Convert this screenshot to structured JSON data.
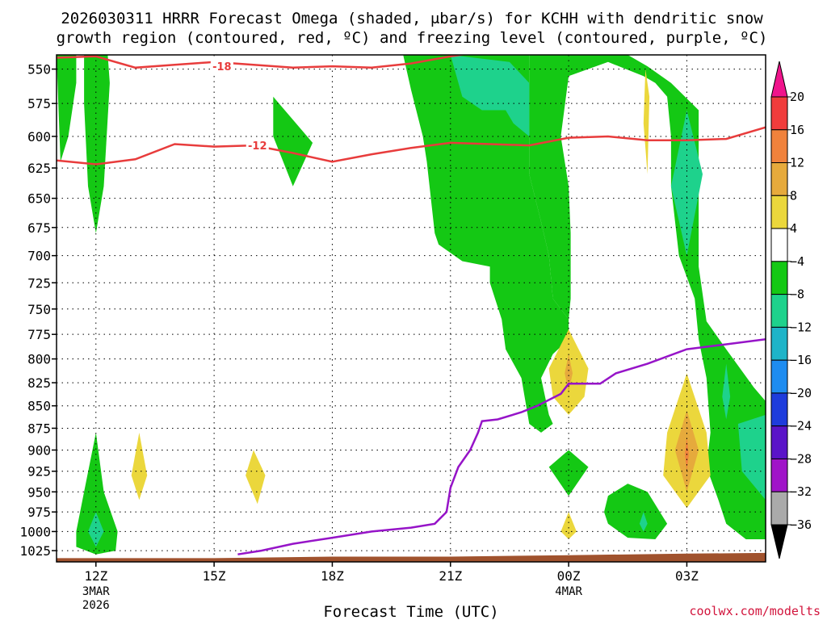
{
  "title_line1": "2026030311 HRRR Forecast Omega (shaded, μbar/s) for KCHH with dendritic snow",
  "title_line2": "growth region (contoured, red, ºC) and freezing level (contoured, purple, ºC)",
  "credit": "coolwx.com/modelts",
  "chart_data": {
    "type": "heatmap",
    "xlabel": "Forecast Time (UTC)",
    "ylabel": "",
    "x_tick_labels": [
      "12Z",
      "15Z",
      "18Z",
      "21Z",
      "00Z",
      "03Z"
    ],
    "x_tick_hours": [
      0,
      3,
      6,
      9,
      12,
      15
    ],
    "x_date_labels": [
      {
        "hour": 0,
        "lines": [
          "3MAR",
          "2026"
        ]
      },
      {
        "hour": 12,
        "lines": [
          "4MAR"
        ]
      }
    ],
    "xlim_hours": [
      -1,
      17
    ],
    "y_ticks_mb": [
      550,
      575,
      600,
      625,
      650,
      675,
      700,
      725,
      750,
      775,
      800,
      825,
      850,
      875,
      900,
      925,
      950,
      975,
      1000,
      1025
    ],
    "ylim_mb": [
      540,
      1040
    ],
    "y_scale": "log-pressure",
    "grid": "dotted",
    "colorbar": {
      "labels": [
        "20",
        "16",
        "12",
        "8",
        "4",
        "−4",
        "−8",
        "−12",
        "−16",
        "−20",
        "−24",
        "−28",
        "−32",
        "−36"
      ],
      "colors": [
        "#f0148c",
        "#f03c3c",
        "#f0823c",
        "#e6aa3c",
        "#ebd73c",
        "#ffffff",
        "#14c814",
        "#1ed28c",
        "#1eb4c8",
        "#1e8cf0",
        "#1e3cdc",
        "#5a14c8",
        "#a014c8",
        "#aaaaaa",
        "#000000"
      ]
    },
    "omega_regions": [
      {
        "level": "-4",
        "color": "#14c814",
        "points": [
          [
            -0.3,
            540
          ],
          [
            0.3,
            540
          ],
          [
            0.35,
            560
          ],
          [
            0.2,
            640
          ],
          [
            0.0,
            680
          ],
          [
            -0.2,
            640
          ],
          [
            -0.3,
            575
          ]
        ]
      },
      {
        "level": "-4",
        "color": "#14c814",
        "points": [
          [
            4.5,
            570
          ],
          [
            5.5,
            605
          ],
          [
            5.0,
            640
          ],
          [
            4.5,
            600
          ]
        ]
      },
      {
        "level": "-4",
        "color": "#14c814",
        "points": [
          [
            11.0,
            540
          ],
          [
            11.8,
            540
          ],
          [
            13.5,
            540
          ],
          [
            14.0,
            548
          ],
          [
            14.6,
            560
          ],
          [
            15.3,
            580
          ],
          [
            15.3,
            655
          ],
          [
            15.3,
            710
          ],
          [
            15.5,
            762
          ],
          [
            16.0,
            790
          ],
          [
            16.7,
            830
          ],
          [
            17.0,
            845
          ],
          [
            17.0,
            1010
          ],
          [
            16.5,
            1010
          ],
          [
            16.0,
            990
          ],
          [
            15.8,
            960
          ],
          [
            15.5,
            920
          ],
          [
            15.6,
            880
          ],
          [
            15.5,
            820
          ],
          [
            15.3,
            780
          ],
          [
            15.2,
            740
          ],
          [
            14.8,
            700
          ],
          [
            14.6,
            640
          ],
          [
            14.6,
            600
          ],
          [
            14.5,
            570
          ],
          [
            14.2,
            560
          ],
          [
            13.9,
            555
          ],
          [
            13.0,
            545
          ],
          [
            12.0,
            555
          ],
          [
            11.8,
            600
          ],
          [
            12.0,
            640
          ],
          [
            12.05,
            680
          ],
          [
            12.05,
            740
          ],
          [
            12.0,
            760
          ],
          [
            11.6,
            740
          ],
          [
            11.5,
            700
          ],
          [
            11.3,
            670
          ],
          [
            11.0,
            630
          ],
          [
            11.0,
            560
          ]
        ]
      },
      {
        "level": "-4",
        "color": "#14c814",
        "points": [
          [
            7.8,
            540
          ],
          [
            11.0,
            540
          ],
          [
            11.0,
            630
          ],
          [
            11.3,
            670
          ],
          [
            11.5,
            700
          ],
          [
            11.6,
            740
          ],
          [
            12.0,
            760
          ],
          [
            12.0,
            780
          ],
          [
            11.6,
            795
          ],
          [
            11.3,
            820
          ],
          [
            11.5,
            860
          ],
          [
            11.6,
            870
          ],
          [
            11.3,
            880
          ],
          [
            11.0,
            870
          ],
          [
            10.8,
            820
          ],
          [
            10.4,
            790
          ],
          [
            10.3,
            760
          ],
          [
            10.0,
            725
          ],
          [
            10.0,
            710
          ],
          [
            9.3,
            705
          ],
          [
            8.7,
            690
          ],
          [
            8.6,
            680
          ],
          [
            8.4,
            620
          ],
          [
            8.3,
            600
          ],
          [
            8.0,
            565
          ]
        ]
      },
      {
        "level": "-4",
        "color": "#14c814",
        "points": [
          [
            -1.0,
            540
          ],
          [
            -0.5,
            540
          ],
          [
            -0.5,
            560
          ],
          [
            -0.7,
            600
          ],
          [
            -0.9,
            620
          ]
        ]
      },
      {
        "level": "-4",
        "color": "#14c814",
        "points": [
          [
            0.0,
            880
          ],
          [
            0.2,
            950
          ],
          [
            0.55,
            1000
          ],
          [
            0.5,
            1025
          ],
          [
            0.0,
            1030
          ],
          [
            -0.5,
            1020
          ],
          [
            -0.5,
            1000
          ],
          [
            -0.3,
            950
          ]
        ]
      },
      {
        "level": "-4",
        "color": "#14c814",
        "points": [
          [
            12.0,
            900
          ],
          [
            12.5,
            920
          ],
          [
            12.0,
            955
          ],
          [
            11.5,
            920
          ]
        ]
      },
      {
        "level": "-4",
        "color": "#14c814",
        "points": [
          [
            13.0,
            955
          ],
          [
            13.5,
            940
          ],
          [
            14.0,
            950
          ],
          [
            14.5,
            990
          ],
          [
            14.2,
            1010
          ],
          [
            13.5,
            1008
          ],
          [
            13.0,
            990
          ],
          [
            12.9,
            975
          ]
        ]
      },
      {
        "level": "-8",
        "color": "#1ed28c",
        "points": [
          [
            9.0,
            540
          ],
          [
            10.5,
            545
          ],
          [
            11.0,
            560
          ],
          [
            11.0,
            600
          ],
          [
            10.6,
            590
          ],
          [
            10.4,
            580
          ],
          [
            9.8,
            580
          ],
          [
            9.3,
            570
          ]
        ]
      },
      {
        "level": "-8",
        "color": "#1ed28c",
        "points": [
          [
            15.0,
            580
          ],
          [
            15.4,
            630
          ],
          [
            15.0,
            700
          ],
          [
            14.6,
            640
          ]
        ]
      },
      {
        "level": "-8",
        "color": "#1ed28c",
        "points": [
          [
            16.3,
            870
          ],
          [
            17.0,
            860
          ],
          [
            17.0,
            960
          ],
          [
            16.4,
            925
          ]
        ]
      },
      {
        "level": "-8",
        "color": "#1ed28c",
        "points": [
          [
            16.0,
            805
          ],
          [
            16.1,
            840
          ],
          [
            16.0,
            865
          ],
          [
            15.9,
            840
          ]
        ]
      },
      {
        "level": "-8",
        "color": "#1ed28c",
        "points": [
          [
            0.0,
            975
          ],
          [
            0.2,
            1000
          ],
          [
            0.0,
            1020
          ],
          [
            -0.2,
            1000
          ]
        ]
      },
      {
        "level": "-8",
        "color": "#1ed28c",
        "points": [
          [
            13.9,
            975
          ],
          [
            14.0,
            990
          ],
          [
            13.9,
            1000
          ],
          [
            13.8,
            990
          ]
        ]
      },
      {
        "level": "4",
        "color": "#ebd73c",
        "points": [
          [
            12.0,
            770
          ],
          [
            12.5,
            810
          ],
          [
            12.4,
            840
          ],
          [
            12.0,
            860
          ],
          [
            11.6,
            840
          ],
          [
            11.5,
            810
          ]
        ]
      },
      {
        "level": "4",
        "color": "#ebd73c",
        "points": [
          [
            15.0,
            815
          ],
          [
            15.5,
            880
          ],
          [
            15.6,
            930
          ],
          [
            15.0,
            970
          ],
          [
            14.4,
            930
          ],
          [
            14.5,
            880
          ]
        ]
      },
      {
        "level": "4",
        "color": "#ebd73c",
        "points": [
          [
            1.1,
            880
          ],
          [
            1.3,
            930
          ],
          [
            1.1,
            960
          ],
          [
            0.9,
            930
          ]
        ]
      },
      {
        "level": "4",
        "color": "#ebd73c",
        "points": [
          [
            4.0,
            900
          ],
          [
            4.3,
            930
          ],
          [
            4.1,
            965
          ],
          [
            3.8,
            930
          ]
        ]
      },
      {
        "level": "4",
        "color": "#ebd73c",
        "points": [
          [
            13.95,
            550
          ],
          [
            14.05,
            570
          ],
          [
            14.0,
            630
          ],
          [
            13.9,
            590
          ]
        ]
      },
      {
        "level": "4",
        "color": "#ebd73c",
        "points": [
          [
            12.0,
            975
          ],
          [
            12.2,
            1000
          ],
          [
            12.0,
            1010
          ],
          [
            11.8,
            1000
          ]
        ]
      },
      {
        "level": "8",
        "color": "#e6aa3c",
        "points": [
          [
            12.0,
            795
          ],
          [
            12.1,
            815
          ],
          [
            12.0,
            835
          ],
          [
            11.9,
            815
          ]
        ]
      },
      {
        "level": "8",
        "color": "#e6aa3c",
        "points": [
          [
            15.0,
            855
          ],
          [
            15.3,
            900
          ],
          [
            15.0,
            950
          ],
          [
            14.7,
            900
          ]
        ]
      },
      {
        "level": "12",
        "color": "#f0823c",
        "points": [
          [
            15.0,
            885
          ],
          [
            15.05,
            905
          ],
          [
            15.0,
            925
          ],
          [
            14.95,
            905
          ]
        ]
      }
    ],
    "contours": [
      {
        "name": "-18",
        "color": "#e83c3c",
        "label": "-18",
        "label_at": [
          3.2,
          548
        ],
        "points": [
          [
            -1,
            542
          ],
          [
            0,
            541
          ],
          [
            1,
            549
          ],
          [
            2,
            547
          ],
          [
            3,
            545
          ],
          [
            4,
            547
          ],
          [
            5,
            549
          ],
          [
            6,
            548
          ],
          [
            7,
            549
          ],
          [
            8,
            546
          ],
          [
            9,
            541
          ],
          [
            10,
            537
          ]
        ]
      },
      {
        "name": "-12",
        "color": "#e83c3c",
        "label": "-12",
        "label_at": [
          4.1,
          607
        ],
        "points": [
          [
            -1,
            619
          ],
          [
            0,
            622
          ],
          [
            1,
            618
          ],
          [
            2,
            606
          ],
          [
            3,
            608
          ],
          [
            4,
            607
          ],
          [
            5,
            613
          ],
          [
            6,
            620
          ],
          [
            7,
            614
          ],
          [
            8,
            609
          ],
          [
            9,
            605
          ],
          [
            10,
            606
          ],
          [
            11,
            607
          ],
          [
            12,
            601
          ],
          [
            13,
            600
          ],
          [
            14,
            603
          ],
          [
            15,
            603
          ],
          [
            16,
            602
          ],
          [
            17,
            593
          ]
        ]
      },
      {
        "name": "freezing",
        "color": "#9614c8",
        "label": "",
        "label_at": null,
        "points": [
          [
            3.6,
            1030
          ],
          [
            4.2,
            1025
          ],
          [
            5.0,
            1016
          ],
          [
            6.0,
            1008
          ],
          [
            7.0,
            1000
          ],
          [
            8.0,
            995
          ],
          [
            8.6,
            990
          ],
          [
            8.9,
            975
          ],
          [
            9.0,
            945
          ],
          [
            9.2,
            920
          ],
          [
            9.5,
            900
          ],
          [
            9.7,
            880
          ],
          [
            9.8,
            867
          ],
          [
            10.2,
            865
          ],
          [
            10.8,
            857
          ],
          [
            11.2,
            850
          ],
          [
            11.8,
            837
          ],
          [
            12.0,
            826
          ],
          [
            12.8,
            826
          ],
          [
            13.2,
            815
          ],
          [
            14.0,
            805
          ],
          [
            15.0,
            790
          ],
          [
            16.0,
            785
          ],
          [
            17.0,
            780
          ]
        ]
      }
    ],
    "terrain_mb": [
      [
        -1,
        1035
      ],
      [
        3,
        1035
      ],
      [
        6,
        1033
      ],
      [
        9,
        1033
      ],
      [
        12,
        1031
      ],
      [
        15,
        1029
      ],
      [
        17,
        1028
      ]
    ]
  }
}
